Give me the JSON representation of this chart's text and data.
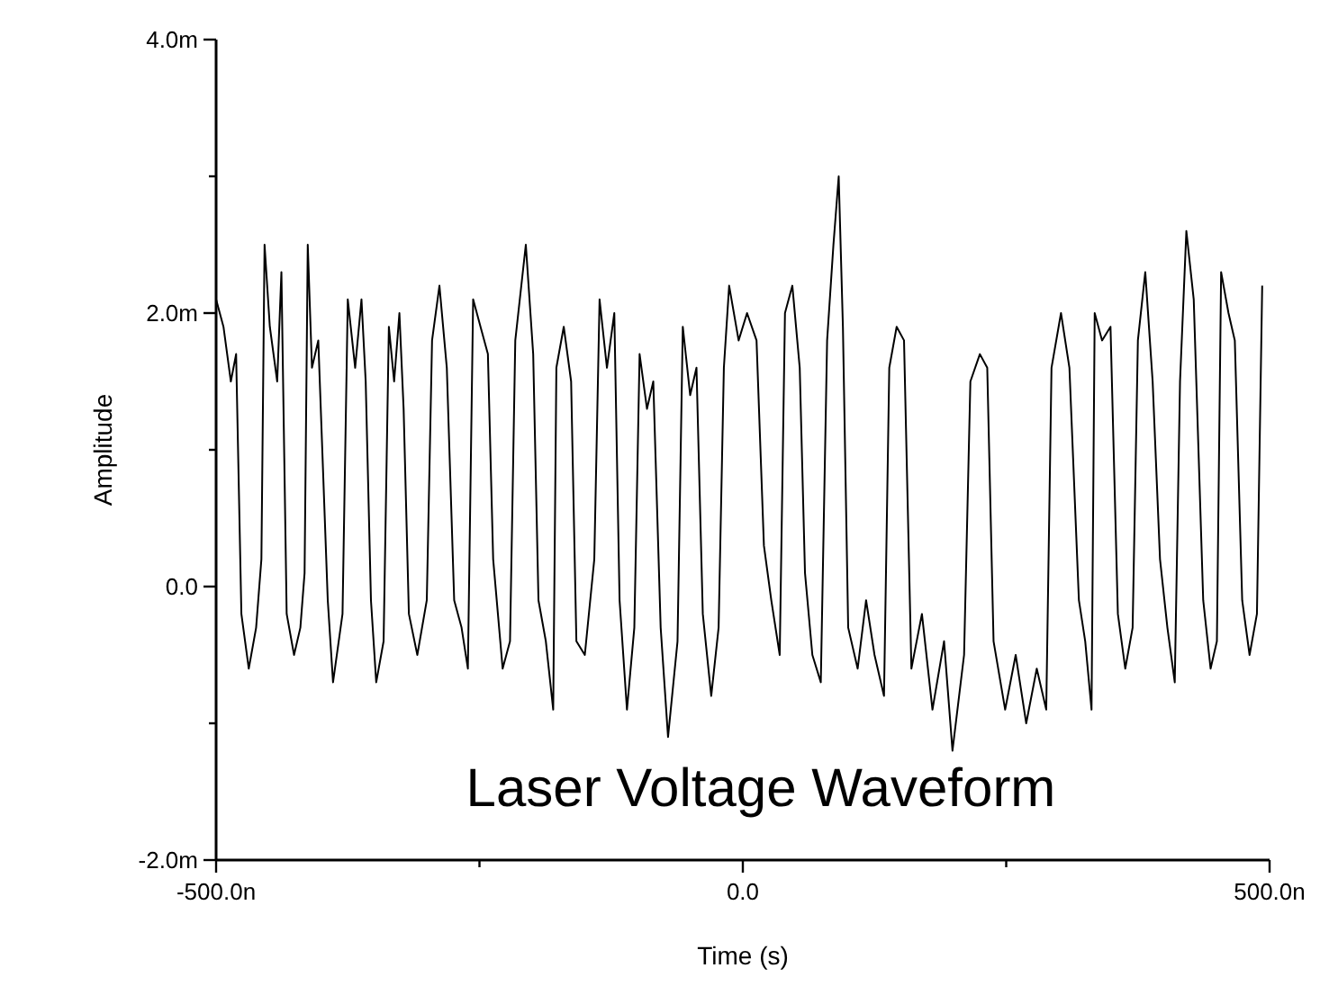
{
  "chart_data": {
    "type": "line",
    "xlabel": "Time (s)",
    "ylabel": "Amplitude",
    "annotations": [
      "Laser Voltage Waveform"
    ],
    "xlim": [
      -500,
      500
    ],
    "ylim": [
      -2,
      4
    ],
    "xticks": [
      {
        "value": -500,
        "label": "-500.0n"
      },
      {
        "value": -250,
        "label": null
      },
      {
        "value": 0,
        "label": "0.0"
      },
      {
        "value": 250,
        "label": null
      },
      {
        "value": 500,
        "label": "500.0n"
      }
    ],
    "yticks": [
      {
        "value": -2,
        "label": "-2.0m"
      },
      {
        "value": -1,
        "label": null
      },
      {
        "value": 0,
        "label": "0.0"
      },
      {
        "value": 1,
        "label": null
      },
      {
        "value": 2,
        "label": "2.0m"
      },
      {
        "value": 3,
        "label": null
      },
      {
        "value": 4,
        "label": "4.0m"
      }
    ],
    "grid": false,
    "marker": "none",
    "line_style": "solid",
    "series": [
      {
        "color": "#000000",
        "x": [
          -500,
          -493,
          -486,
          -481,
          -476,
          -469,
          -462,
          -457,
          -454,
          -449,
          -442,
          -438,
          -433,
          -426,
          -420,
          -416,
          -413,
          -409,
          -403,
          -394,
          -389,
          -380,
          -375,
          -368,
          -362,
          -358,
          -353,
          -348,
          -341,
          -336,
          -331,
          -326,
          -322,
          -317,
          -309,
          -300,
          -295,
          -288,
          -281,
          -274,
          -267,
          -261,
          -256,
          -249,
          -242,
          -237,
          -228,
          -221,
          -216,
          -206,
          -199,
          -194,
          -187,
          -180,
          -177,
          -170,
          -163,
          -158,
          -150,
          -141,
          -136,
          -129,
          -122,
          -117,
          -110,
          -103,
          -98,
          -91,
          -85,
          -78,
          -71,
          -62,
          -57,
          -50,
          -44,
          -38,
          -30,
          -23,
          -18,
          -13,
          -4,
          4,
          13,
          20,
          27,
          35,
          40,
          47,
          54,
          59,
          66,
          74,
          80,
          86,
          91,
          95,
          100,
          109,
          117,
          125,
          134,
          139,
          146,
          153,
          160,
          170,
          180,
          191,
          199,
          210,
          216,
          225,
          232,
          238,
          249,
          259,
          269,
          279,
          288,
          293,
          302,
          310,
          319,
          325,
          331,
          334,
          341,
          349,
          356,
          363,
          370,
          375,
          382,
          389,
          396,
          403,
          410,
          415,
          421,
          428,
          437,
          444,
          450,
          454,
          461,
          467,
          474,
          481,
          488,
          493
        ],
        "values": [
          2.1,
          1.9,
          1.5,
          1.7,
          -0.2,
          -0.6,
          -0.3,
          0.2,
          2.5,
          1.9,
          1.5,
          2.3,
          -0.2,
          -0.5,
          -0.3,
          0.1,
          2.5,
          1.6,
          1.8,
          -0.1,
          -0.7,
          -0.2,
          2.1,
          1.6,
          2.1,
          1.5,
          -0.1,
          -0.7,
          -0.4,
          1.9,
          1.5,
          2.0,
          1.3,
          -0.2,
          -0.5,
          -0.1,
          1.8,
          2.2,
          1.6,
          -0.1,
          -0.3,
          -0.6,
          2.1,
          1.9,
          1.7,
          0.2,
          -0.6,
          -0.4,
          1.8,
          2.5,
          1.7,
          -0.1,
          -0.4,
          -0.9,
          1.6,
          1.9,
          1.5,
          -0.4,
          -0.5,
          0.2,
          2.1,
          1.6,
          2.0,
          -0.1,
          -0.9,
          -0.3,
          1.7,
          1.3,
          1.5,
          -0.3,
          -1.1,
          -0.4,
          1.9,
          1.4,
          1.6,
          -0.2,
          -0.8,
          -0.3,
          1.6,
          2.2,
          1.8,
          2.0,
          1.8,
          0.3,
          -0.1,
          -0.5,
          2.0,
          2.2,
          1.6,
          0.1,
          -0.5,
          -0.7,
          1.8,
          2.5,
          3.0,
          1.9,
          -0.3,
          -0.6,
          -0.1,
          -0.5,
          -0.8,
          1.6,
          1.9,
          1.8,
          -0.6,
          -0.2,
          -0.9,
          -0.4,
          -1.2,
          -0.5,
          1.5,
          1.7,
          1.6,
          -0.4,
          -0.9,
          -0.5,
          -1.0,
          -0.6,
          -0.9,
          1.6,
          2.0,
          1.6,
          -0.1,
          -0.4,
          -0.9,
          2.0,
          1.8,
          1.9,
          -0.2,
          -0.6,
          -0.3,
          1.8,
          2.3,
          1.5,
          0.2,
          -0.3,
          -0.7,
          1.5,
          2.6,
          2.1,
          -0.1,
          -0.6,
          -0.4,
          2.3,
          2.0,
          1.8,
          -0.1,
          -0.5,
          -0.2,
          2.2
        ]
      }
    ]
  }
}
